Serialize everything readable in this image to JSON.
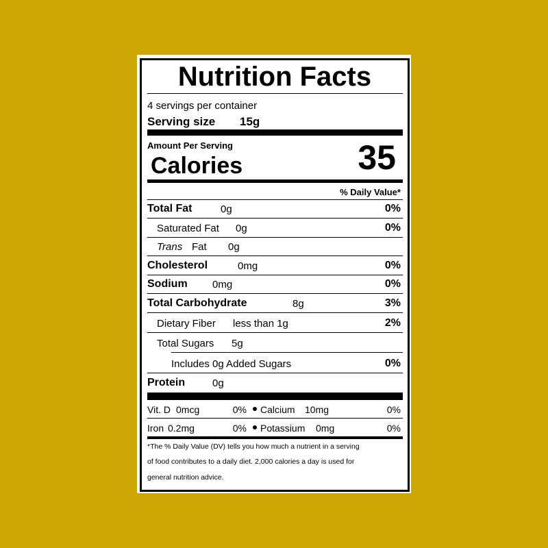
{
  "title": "Nutrition Facts",
  "servings": "4 servings per container",
  "serving_size": {
    "label": "Serving size",
    "value": "15g"
  },
  "amount_per_serving": "Amount Per Serving",
  "calories": {
    "label": "Calories",
    "value": "35"
  },
  "daily_value_header": "% Daily Value*",
  "nutrients": [
    {
      "name": "Total Fat",
      "amount": "0g",
      "dv": "0%"
    },
    {
      "name": "Saturated Fat",
      "amount": "0g",
      "dv": "0%"
    },
    {
      "name_italic": "Trans",
      "name": "Fat",
      "amount": "0g"
    },
    {
      "name": "Cholesterol",
      "amount": "0mg",
      "dv": "0%"
    },
    {
      "name": "Sodium",
      "amount": "0mg",
      "dv": "0%"
    },
    {
      "name": "Total Carbohydrate",
      "amount": "8g",
      "dv": "3%"
    },
    {
      "name": "Dietary Fiber",
      "amount": "less than 1g",
      "dv": "2%"
    },
    {
      "name": "Total Sugars",
      "amount": "5g"
    },
    {
      "name": "Includes 0g Added Sugars",
      "dv": "0%"
    },
    {
      "name": "Protein",
      "amount": "0g"
    }
  ],
  "vitamins": [
    {
      "name": "Vit. D",
      "amount": "0mcg",
      "dv": "0%"
    },
    {
      "name": "Calcium",
      "amount": "10mg",
      "dv": "0%"
    },
    {
      "name": "Iron",
      "amount": "0.2mg",
      "dv": "0%"
    },
    {
      "name": "Potassium",
      "amount": "0mg",
      "dv": "0%"
    }
  ],
  "footnote": [
    "*The % Daily Value (DV) tells you how much a nutrient in a serving",
    "of food contributes to a daily diet. 2,000 calories a day is used for",
    "general nutrition advice."
  ]
}
